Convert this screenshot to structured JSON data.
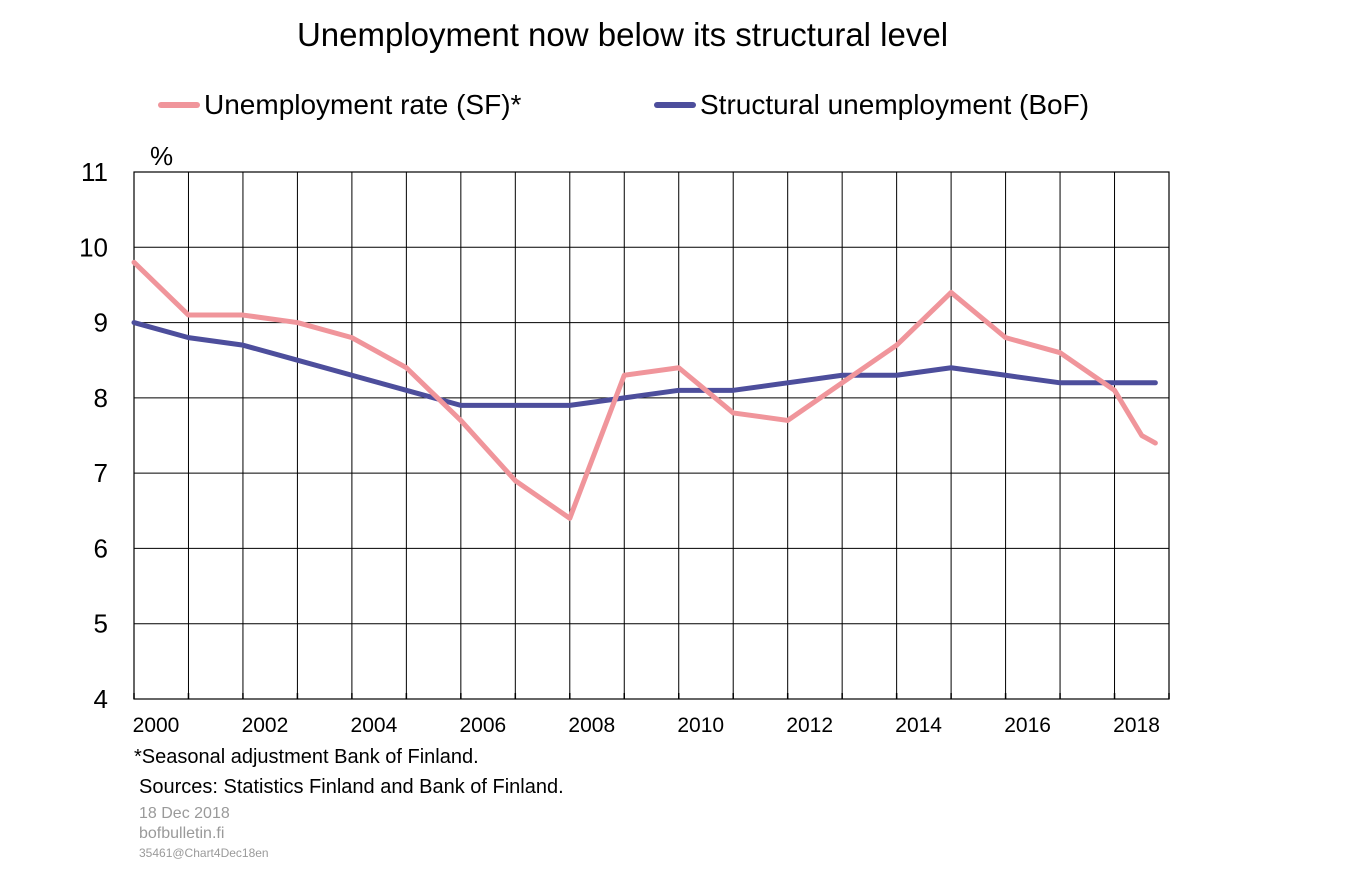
{
  "chart_data": {
    "type": "line",
    "title": "Unemployment now below its structural level",
    "ylabel": "%",
    "ylim": [
      4,
      11
    ],
    "yticks": [
      "11",
      "10",
      "9",
      "8",
      "7",
      "6",
      "5",
      "4"
    ],
    "xticks": [
      "2000",
      "2002",
      "2004",
      "2006",
      "2008",
      "2010",
      "2012",
      "2014",
      "2016",
      "2018"
    ],
    "x_range": [
      2000,
      2019
    ],
    "grid": true,
    "legend_position": "top",
    "series": [
      {
        "name": "Unemployment rate (SF)*",
        "color": "#f0959b",
        "x": [
          2000,
          2001,
          2002,
          2003,
          2004,
          2005,
          2006,
          2007,
          2008,
          2009,
          2010,
          2011,
          2012,
          2013,
          2014,
          2015,
          2016,
          2017,
          2018,
          2018.5,
          2018.75
        ],
        "values": [
          9.8,
          9.1,
          9.1,
          9.0,
          8.8,
          8.4,
          7.7,
          6.9,
          6.4,
          8.3,
          8.4,
          7.8,
          7.7,
          8.2,
          8.7,
          9.4,
          8.8,
          8.6,
          8.1,
          7.5,
          7.4
        ]
      },
      {
        "name": "Structural unemployment (BoF)",
        "color": "#4d4e9c",
        "x": [
          2000,
          2001,
          2002,
          2003,
          2004,
          2005,
          2006,
          2007,
          2008,
          2009,
          2010,
          2011,
          2012,
          2013,
          2014,
          2015,
          2016,
          2017,
          2018,
          2018.5,
          2018.75
        ],
        "values": [
          9.0,
          8.8,
          8.7,
          8.5,
          8.3,
          8.1,
          7.9,
          7.9,
          7.9,
          8.0,
          8.1,
          8.1,
          8.2,
          8.3,
          8.3,
          8.4,
          8.3,
          8.2,
          8.2,
          8.2,
          8.2
        ]
      }
    ]
  },
  "footnote": "*Seasonal adjustment  Bank of Finland.",
  "sources": "Sources: Statistics Finland and Bank of Finland.",
  "date": "18 Dec 2018",
  "site": "bofbulletin.fi",
  "code": "35461@Chart4Dec18en"
}
